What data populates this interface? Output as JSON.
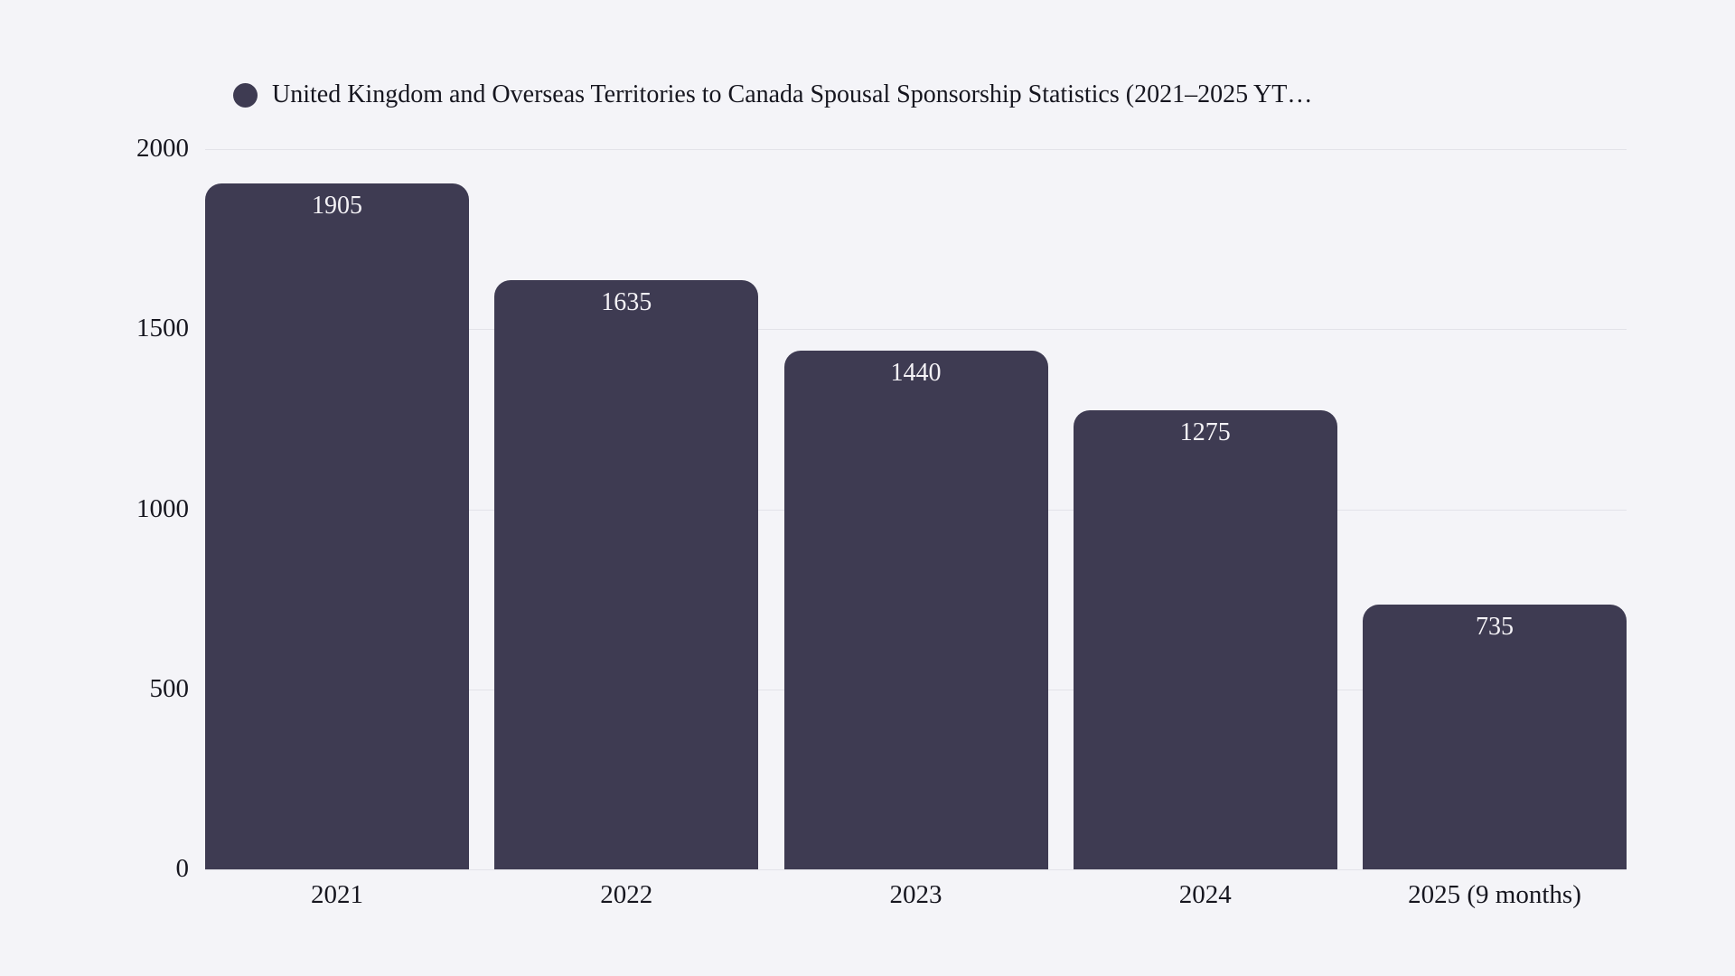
{
  "page": {
    "background_color": "#f4f4f8",
    "text_color": "#16161f"
  },
  "legend": {
    "label": "United Kingdom and Overseas Territories to Canada Spousal Sponsorship Statistics (2021–2025 YT…",
    "marker_color": "#3e3b52",
    "position": "top-left"
  },
  "chart_data": {
    "type": "bar",
    "title": "United Kingdom and Overseas Territories to Canada Spousal Sponsorship Statistics (2021–2025 YT…",
    "categories": [
      "2021",
      "2022",
      "2023",
      "2024",
      "2025 (9 months)"
    ],
    "values": [
      1905,
      1635,
      1440,
      1275,
      735
    ],
    "value_labels": [
      "1905",
      "1635",
      "1440",
      "1275",
      "735"
    ],
    "xlabel": "",
    "ylabel": "",
    "ylim": [
      0,
      2000
    ],
    "yticks": [
      0,
      500,
      1000,
      1500,
      2000
    ],
    "ytick_labels": [
      "0",
      "500",
      "1000",
      "1500",
      "2000"
    ],
    "grid": "horizontal",
    "legend_position": "top",
    "bar_color": "#3e3b52",
    "value_label_color": "#f4f2f6",
    "gridline_color": "#e3e3e9"
  }
}
